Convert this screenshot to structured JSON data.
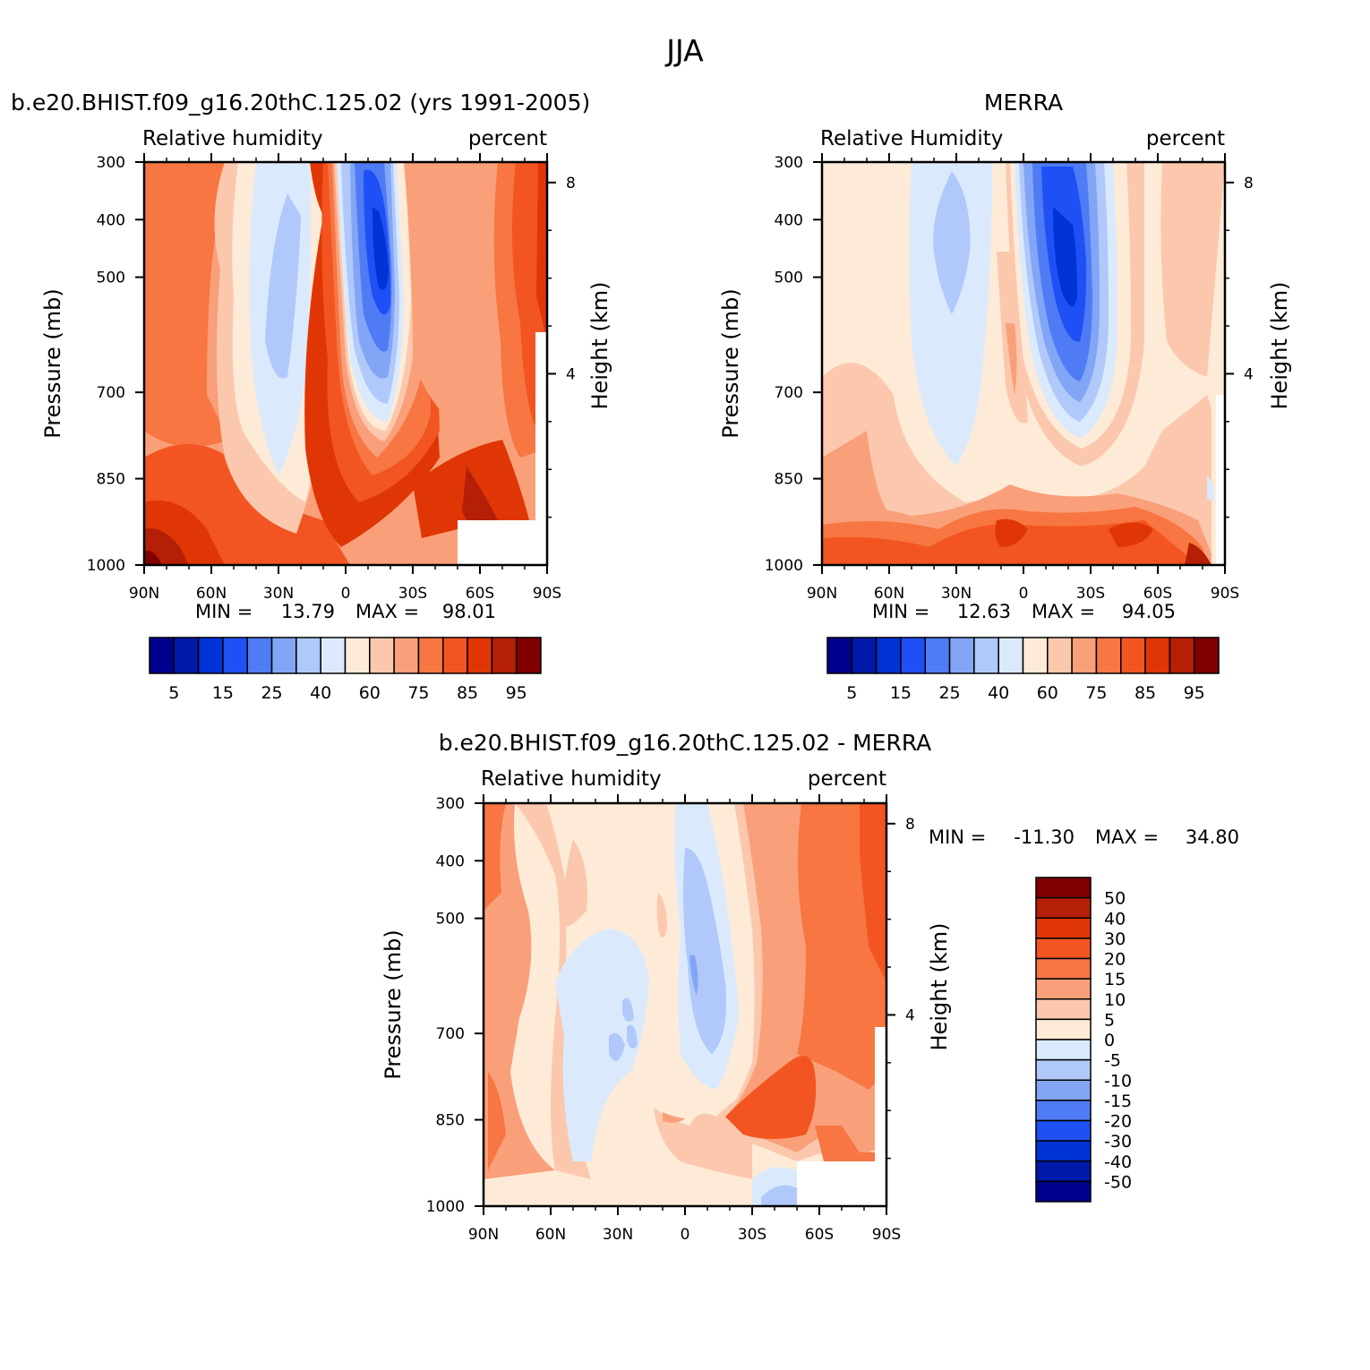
{
  "figure": {
    "title": "JJA"
  },
  "chart_data": [
    {
      "type": "heatmap",
      "id": "model",
      "title": "b.e20.BHIST.f09_g16.20thC.125.02 (yrs 1991-2005)",
      "left_label": "Relative humidity",
      "right_label": "percent",
      "ylabel": "Pressure (mb)",
      "y2label": "Height (km)",
      "x_ticks": [
        "90N",
        "60N",
        "30N",
        "0",
        "30S",
        "60S",
        "90S"
      ],
      "x_range": [
        90,
        -90
      ],
      "y_ticks": [
        300,
        400,
        500,
        700,
        850,
        1000
      ],
      "y_range": [
        300,
        1000
      ],
      "height_ticks": [
        8,
        4
      ],
      "min_label": "MIN =",
      "min_value": "13.79",
      "max_label": "MAX =",
      "max_value": "98.01",
      "colorbar": {
        "colors": [
          "#00008c",
          "#0019a8",
          "#0033d6",
          "#1e50f5",
          "#4f7cf5",
          "#82a6f5",
          "#b0c9fa",
          "#daeafc",
          "#fdebd8",
          "#fbc8ae",
          "#f9a07a",
          "#f77642",
          "#f25522",
          "#e03606",
          "#b41f06",
          "#800000"
        ],
        "tick_labels": [
          "5",
          "15",
          "25",
          "40",
          "60",
          "75",
          "85",
          "95"
        ]
      }
    },
    {
      "type": "heatmap",
      "id": "obs",
      "title": "MERRA",
      "left_label": "Relative Humidity",
      "right_label": "percent",
      "ylabel": "Pressure (mb)",
      "y2label": "Height (km)",
      "x_ticks": [
        "90N",
        "60N",
        "30N",
        "0",
        "30S",
        "60S",
        "90S"
      ],
      "x_range": [
        90,
        -90
      ],
      "y_ticks": [
        300,
        400,
        500,
        700,
        850,
        1000
      ],
      "y_range": [
        300,
        1000
      ],
      "height_ticks": [
        8,
        4
      ],
      "min_label": "MIN =",
      "min_value": "12.63",
      "max_label": "MAX =",
      "max_value": "94.05",
      "colorbar": {
        "colors": [
          "#00008c",
          "#0019a8",
          "#0033d6",
          "#1e50f5",
          "#4f7cf5",
          "#82a6f5",
          "#b0c9fa",
          "#daeafc",
          "#fdebd8",
          "#fbc8ae",
          "#f9a07a",
          "#f77642",
          "#f25522",
          "#e03606",
          "#b41f06",
          "#800000"
        ],
        "tick_labels": [
          "5",
          "15",
          "25",
          "40",
          "60",
          "75",
          "85",
          "95"
        ]
      }
    },
    {
      "type": "heatmap",
      "id": "diff",
      "title": "b.e20.BHIST.f09_g16.20thC.125.02 - MERRA",
      "left_label": "Relative humidity",
      "right_label": "percent",
      "ylabel": "Pressure (mb)",
      "y2label": "Height (km)",
      "x_ticks": [
        "90N",
        "60N",
        "30N",
        "0",
        "30S",
        "60S",
        "90S"
      ],
      "x_range": [
        90,
        -90
      ],
      "y_ticks": [
        300,
        400,
        500,
        700,
        850,
        1000
      ],
      "y_range": [
        300,
        1000
      ],
      "height_ticks": [
        8,
        4
      ],
      "min_label": "MIN =",
      "min_value": "-11.30",
      "max_label": "MAX =",
      "max_value": "34.80",
      "colorbar": {
        "colors": [
          "#800000",
          "#b41f06",
          "#e03606",
          "#f25522",
          "#f77642",
          "#f9a07a",
          "#fbc8ae",
          "#fdebd8",
          "#daeafc",
          "#b0c9fa",
          "#82a6f5",
          "#4f7cf5",
          "#1e50f5",
          "#0033d6",
          "#0019a8",
          "#00008c"
        ],
        "tick_labels": [
          "50",
          "40",
          "30",
          "20",
          "15",
          "10",
          "5",
          "0",
          "-5",
          "-10",
          "-15",
          "-20",
          "-30",
          "-40",
          "-50"
        ]
      }
    }
  ]
}
